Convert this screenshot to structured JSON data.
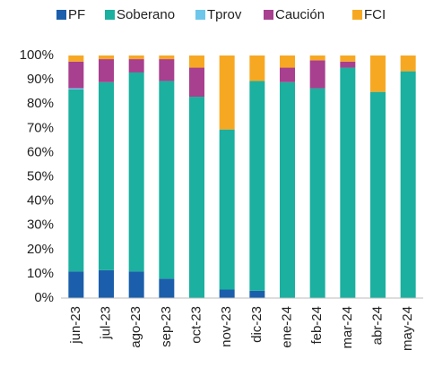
{
  "chart_data": {
    "type": "stacked_bar",
    "categories": [
      "jun-23",
      "jul-23",
      "ago-23",
      "sep-23",
      "oct-23",
      "nov-23",
      "dic-23",
      "ene-24",
      "feb-24",
      "mar-24",
      "abr-24",
      "may-24"
    ],
    "series": [
      {
        "name": "PF",
        "color": "#1b5eab",
        "values": [
          11,
          11.5,
          11,
          8,
          0,
          3.5,
          3,
          0,
          0,
          0,
          0,
          0
        ]
      },
      {
        "name": "Soberano",
        "color": "#1bb09f",
        "values": [
          75,
          77.5,
          82,
          81.5,
          83,
          66,
          86.5,
          89,
          86.5,
          95,
          85,
          93.5
        ]
      },
      {
        "name": "Tprov",
        "color": "#6ec6ea",
        "values": [
          0.5,
          0,
          0,
          0,
          0,
          0,
          0,
          0,
          0,
          0,
          0,
          0
        ]
      },
      {
        "name": "Caución",
        "color": "#a83f8f",
        "values": [
          11,
          9.5,
          5.5,
          9,
          12,
          0,
          0,
          6,
          11.5,
          2.5,
          0,
          0
        ]
      },
      {
        "name": "FCI",
        "color": "#f7a823",
        "values": [
          2.5,
          1.5,
          1.5,
          1.5,
          5,
          30.5,
          10.5,
          5,
          2,
          2.5,
          15,
          6.5
        ]
      }
    ],
    "ylim": [
      0,
      100
    ],
    "yticks": [
      {
        "value": 0,
        "label": "0%"
      },
      {
        "value": 10,
        "label": "10%"
      },
      {
        "value": 20,
        "label": "20%"
      },
      {
        "value": 30,
        "label": "30%"
      },
      {
        "value": 40,
        "label": "40%"
      },
      {
        "value": 50,
        "label": "50%"
      },
      {
        "value": 60,
        "label": "60%"
      },
      {
        "value": 70,
        "label": "70%"
      },
      {
        "value": 80,
        "label": "80%"
      },
      {
        "value": 90,
        "label": "90%"
      },
      {
        "value": 100,
        "label": "100%"
      }
    ],
    "legend": "top"
  }
}
